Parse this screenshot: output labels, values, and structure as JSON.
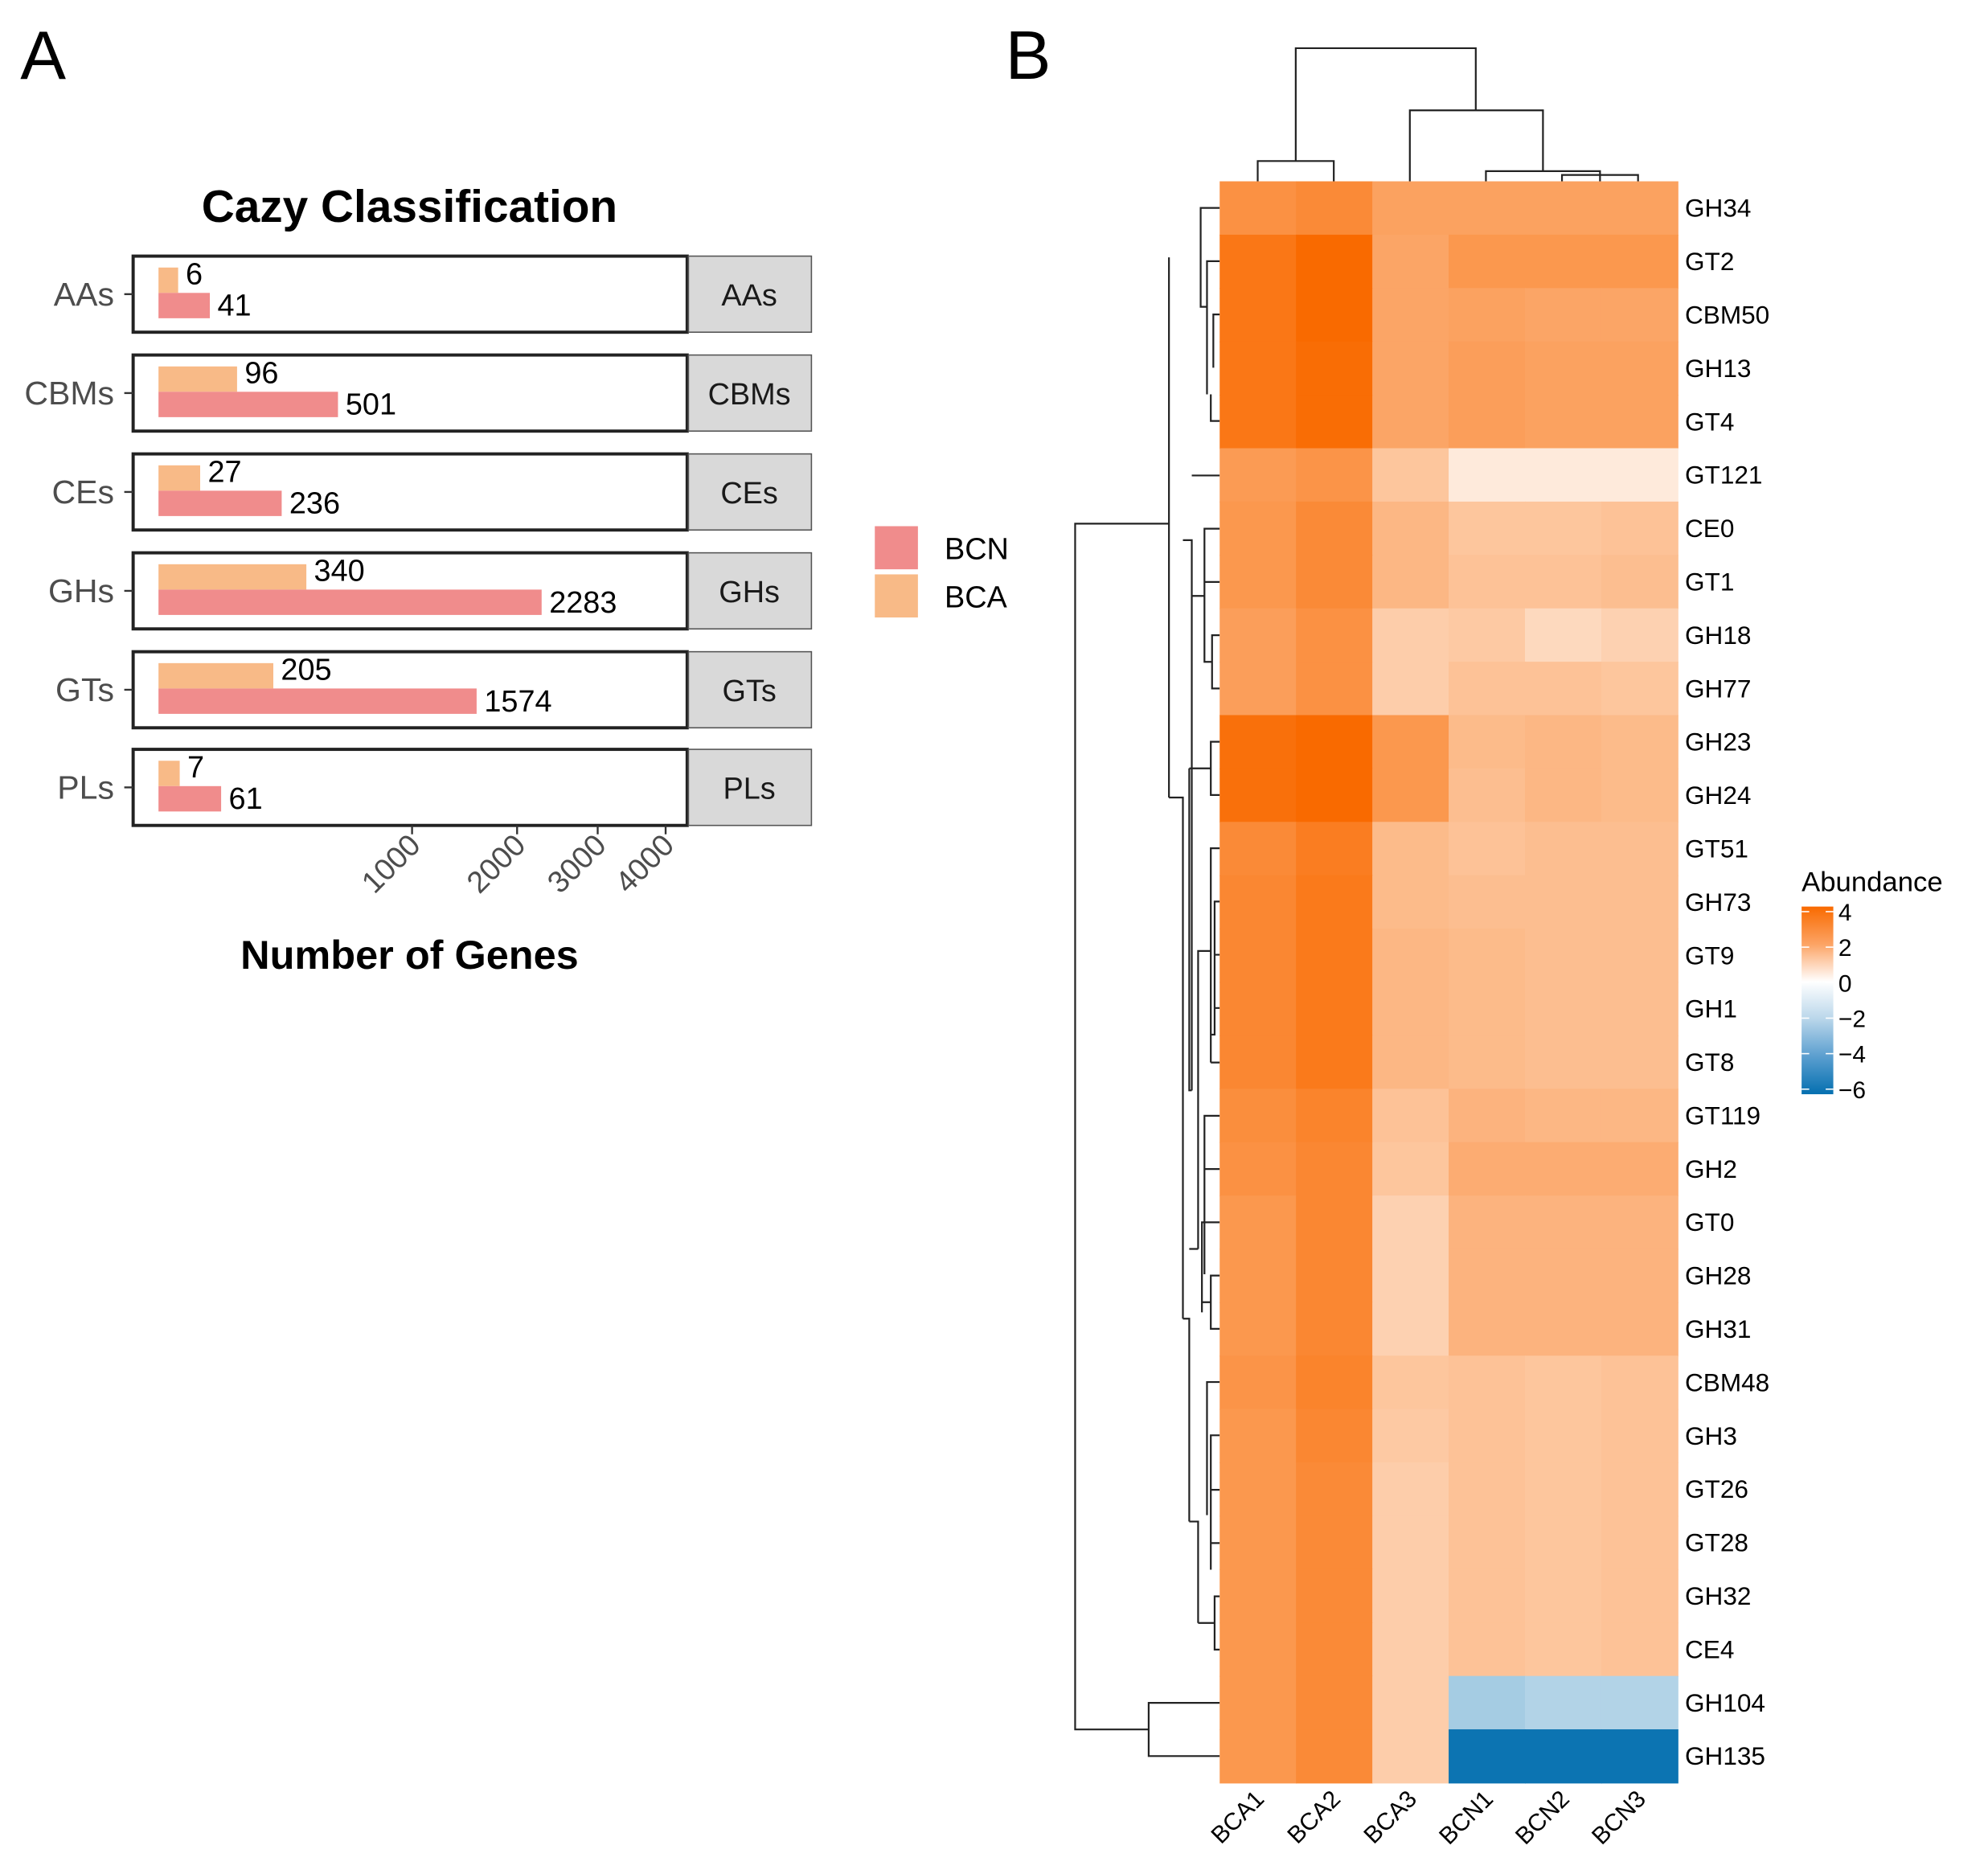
{
  "panel_labels": {
    "a": "A",
    "b": "B"
  },
  "colors": {
    "BCN": "#F08C8C",
    "BCA": "#F8BA87",
    "heat_high": "#F96A00",
    "heat_mid": "#FFFFFF",
    "heat_low": "#0570B0",
    "strip": "#D9D9D9"
  },
  "chart_data": [
    {
      "type": "bar",
      "title": "Cazy Classification",
      "xlabel": "Number of Genes",
      "ylabel": "",
      "x_scale": "sqrt",
      "xlim": [
        0,
        4300
      ],
      "xticks": [
        "1000",
        "2000",
        "3000",
        "4000"
      ],
      "xtick_values": [
        1000,
        2000,
        3000,
        4000
      ],
      "categories": [
        "AAs",
        "CBMs",
        "CEs",
        "GHs",
        "GTs",
        "PLs"
      ],
      "series": [
        {
          "name": "BCA",
          "values": [
            6,
            96,
            27,
            340,
            205,
            7
          ]
        },
        {
          "name": "BCN",
          "values": [
            41,
            501,
            236,
            2283,
            1574,
            61
          ]
        }
      ],
      "legend": {
        "entries": [
          "BCN",
          "BCA"
        ],
        "placement": "right"
      },
      "facet_strips": [
        "AAs",
        "CBMs",
        "CEs",
        "GHs",
        "GTs",
        "PLs"
      ]
    },
    {
      "type": "heatmap",
      "legend_title": "Abundance",
      "colorbar_ticks": [
        "4",
        "2",
        "0",
        "−2",
        "−4",
        "−6"
      ],
      "colorbar_tick_values": [
        4,
        2,
        0,
        -2,
        -4,
        -6
      ],
      "zlim": [
        -6,
        4
      ],
      "columns": [
        "BCA1",
        "BCA2",
        "BCA3",
        "BCN1",
        "BCN2",
        "BCN3"
      ],
      "rows": [
        "GH34",
        "GT2",
        "CBM50",
        "GH13",
        "GT4",
        "GT121",
        "CE0",
        "GT1",
        "GH18",
        "GH77",
        "GH23",
        "GH24",
        "GT51",
        "GH73",
        "GT9",
        "GH1",
        "GT8",
        "GT119",
        "GH2",
        "GT0",
        "GH28",
        "GH31",
        "CBM48",
        "GH3",
        "GT26",
        "GT28",
        "GH32",
        "CE4",
        "GH104",
        "GH135"
      ],
      "values": [
        [
          2.8,
          3.0,
          2.3,
          2.3,
          2.3,
          2.3
        ],
        [
          3.6,
          4.0,
          2.2,
          2.6,
          2.6,
          2.6
        ],
        [
          3.6,
          4.0,
          2.2,
          2.3,
          2.2,
          2.2
        ],
        [
          3.6,
          3.9,
          2.2,
          2.4,
          2.3,
          2.3
        ],
        [
          3.6,
          3.9,
          2.2,
          2.4,
          2.3,
          2.3
        ],
        [
          2.5,
          2.7,
          1.3,
          0.4,
          0.4,
          0.4
        ],
        [
          2.6,
          3.0,
          1.7,
          1.3,
          1.3,
          1.4
        ],
        [
          2.6,
          3.0,
          1.7,
          1.4,
          1.4,
          1.5
        ],
        [
          2.4,
          2.8,
          1.1,
          1.2,
          0.8,
          1.0
        ],
        [
          2.4,
          2.8,
          1.1,
          1.4,
          1.4,
          1.3
        ],
        [
          3.8,
          4.1,
          2.6,
          1.6,
          1.7,
          1.6
        ],
        [
          3.8,
          4.1,
          2.6,
          1.5,
          1.7,
          1.6
        ],
        [
          3.0,
          3.4,
          1.6,
          1.4,
          1.5,
          1.5
        ],
        [
          3.1,
          3.5,
          1.6,
          1.5,
          1.5,
          1.5
        ],
        [
          3.1,
          3.5,
          1.7,
          1.6,
          1.5,
          1.5
        ],
        [
          3.1,
          3.5,
          1.7,
          1.6,
          1.5,
          1.5
        ],
        [
          3.1,
          3.5,
          1.7,
          1.6,
          1.5,
          1.5
        ],
        [
          2.9,
          3.2,
          1.4,
          1.8,
          1.7,
          1.7
        ],
        [
          2.8,
          3.1,
          1.3,
          2.0,
          2.0,
          2.0
        ],
        [
          2.6,
          3.1,
          1.0,
          1.8,
          1.8,
          1.8
        ],
        [
          2.6,
          3.1,
          1.0,
          1.8,
          1.8,
          1.8
        ],
        [
          2.6,
          3.1,
          1.0,
          1.8,
          1.8,
          1.8
        ],
        [
          2.7,
          3.2,
          1.3,
          1.4,
          1.3,
          1.4
        ],
        [
          2.6,
          3.1,
          1.2,
          1.4,
          1.3,
          1.4
        ],
        [
          2.6,
          3.0,
          1.1,
          1.4,
          1.3,
          1.4
        ],
        [
          2.6,
          3.0,
          1.1,
          1.4,
          1.3,
          1.4
        ],
        [
          2.6,
          3.0,
          1.1,
          1.4,
          1.3,
          1.4
        ],
        [
          2.6,
          3.0,
          1.1,
          1.4,
          1.3,
          1.4
        ],
        [
          2.6,
          3.0,
          1.1,
          -1.8,
          -1.5,
          -1.5
        ],
        [
          2.6,
          3.0,
          1.1,
          -5.8,
          -5.8,
          -5.8
        ]
      ]
    }
  ]
}
